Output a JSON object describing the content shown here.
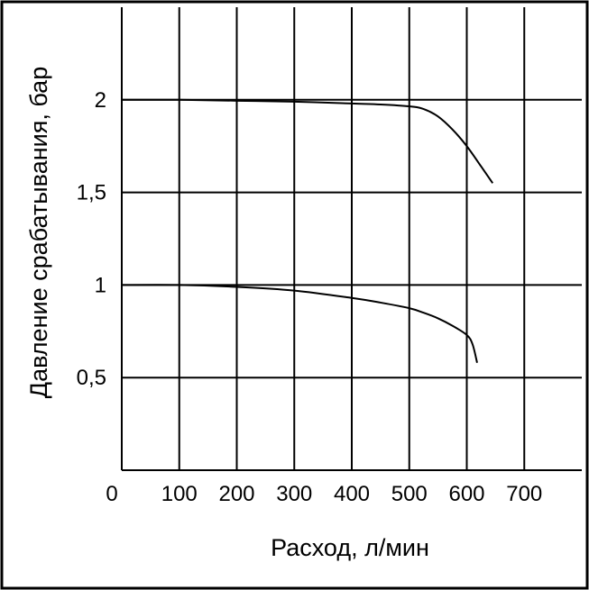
{
  "chart_data": {
    "type": "line",
    "title": "",
    "xlabel": "Расход, л/мин",
    "ylabel": "Давление срабатывания, бар",
    "xlim": [
      0,
      800
    ],
    "ylim": [
      0,
      2.5
    ],
    "x_ticks": [
      0,
      100,
      200,
      300,
      400,
      500,
      600,
      700
    ],
    "x_tick_labels": [
      "0",
      "100",
      "200",
      "300",
      "400",
      "500",
      "600",
      "700"
    ],
    "y_ticks": [
      0.5,
      1,
      1.5,
      2
    ],
    "y_tick_labels": [
      "0,5",
      "1",
      "1,5",
      "2"
    ],
    "grid": true,
    "legend": "none",
    "series": [
      {
        "x": [
          0,
          100,
          200,
          300,
          400,
          450,
          500,
          525,
          550,
          575,
          600,
          625,
          645
        ],
        "y": [
          2.0,
          2.0,
          1.995,
          1.99,
          1.98,
          1.975,
          1.965,
          1.95,
          1.91,
          1.84,
          1.75,
          1.64,
          1.55
        ]
      },
      {
        "x": [
          0,
          100,
          200,
          300,
          400,
          450,
          500,
          525,
          550,
          575,
          600,
          610,
          618
        ],
        "y": [
          1.0,
          1.0,
          0.99,
          0.97,
          0.93,
          0.905,
          0.875,
          0.85,
          0.82,
          0.78,
          0.73,
          0.68,
          0.58
        ]
      }
    ]
  }
}
